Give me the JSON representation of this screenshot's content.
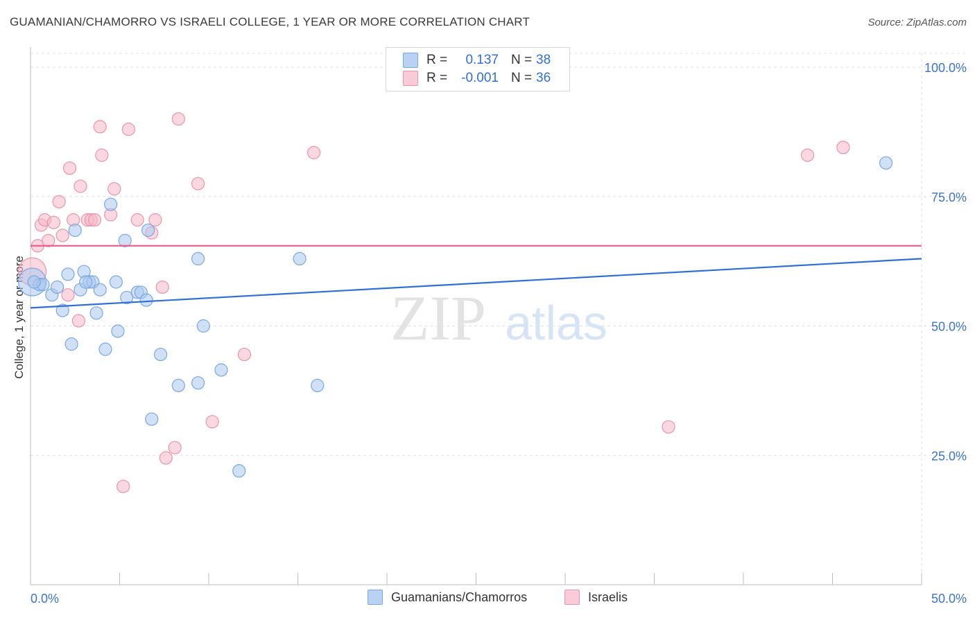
{
  "title": "GUAMANIAN/CHAMORRO VS ISRAELI COLLEGE, 1 YEAR OR MORE CORRELATION CHART",
  "source": "Source: ZipAtlas.com",
  "watermark": {
    "zip": "ZIP",
    "atlas": "atlas"
  },
  "legend_top": [
    {
      "r_label": "R =",
      "r_value": "0.137",
      "n_label": "N =",
      "n_value": "38"
    },
    {
      "r_label": "R =",
      "r_value": "-0.001",
      "n_label": "N =",
      "n_value": "36"
    }
  ],
  "colors": {
    "blue_fill": "#a9c8ef",
    "blue_stroke": "#7aa7e0",
    "blue_line": "#2f6fd6",
    "pink_fill": "#f5b8c9",
    "pink_stroke": "#eb93ad",
    "pink_line": "#e8618c",
    "tick_label": "#3b74c8",
    "grid": "#dddddd"
  },
  "chart_data": {
    "type": "scatter",
    "title": "GUAMANIAN/CHAMORRO VS ISRAELI COLLEGE, 1 YEAR OR MORE CORRELATION CHART",
    "ylabel": "College, 1 year or more",
    "xlabel": "",
    "xlim": [
      0,
      50
    ],
    "ylim": [
      0,
      105
    ],
    "x_tick_labels": [
      "0.0%",
      "50.0%"
    ],
    "y_ticks": [
      25,
      50,
      75,
      100
    ],
    "y_tick_labels": [
      "25.0%",
      "50.0%",
      "75.0%",
      "100.0%"
    ],
    "grid": true,
    "legend_position": "bottom",
    "series": [
      {
        "name": "Guamanians/Chamorros",
        "color": "blue",
        "points": [
          [
            0.1,
            58.5
          ],
          [
            0.5,
            58
          ],
          [
            0.7,
            58
          ],
          [
            1.2,
            56
          ],
          [
            1.5,
            57.5
          ],
          [
            1.8,
            53
          ],
          [
            2.1,
            60
          ],
          [
            2.3,
            46.5
          ],
          [
            2.5,
            68.5
          ],
          [
            2.8,
            57
          ],
          [
            3.0,
            60.5
          ],
          [
            3.3,
            58.5
          ],
          [
            3.5,
            58.5
          ],
          [
            3.7,
            52.5
          ],
          [
            3.9,
            57
          ],
          [
            4.2,
            45.5
          ],
          [
            4.5,
            73.5
          ],
          [
            4.8,
            58.5
          ],
          [
            4.9,
            49
          ],
          [
            5.3,
            66.5
          ],
          [
            5.4,
            55.5
          ],
          [
            6.0,
            56.5
          ],
          [
            6.2,
            56.5
          ],
          [
            6.5,
            55
          ],
          [
            6.6,
            68.5
          ],
          [
            6.8,
            32
          ],
          [
            7.3,
            44.5
          ],
          [
            8.3,
            38.5
          ],
          [
            9.4,
            39
          ],
          [
            9.4,
            63
          ],
          [
            9.7,
            50
          ],
          [
            10.7,
            41.5
          ],
          [
            11.7,
            22
          ],
          [
            15.1,
            63
          ],
          [
            16.1,
            38.5
          ],
          [
            48.0,
            81.5
          ],
          [
            0.2,
            58.5
          ],
          [
            3.1,
            58.5
          ]
        ],
        "trend": [
          [
            0,
            53.5
          ],
          [
            50,
            63
          ]
        ]
      },
      {
        "name": "Israelis",
        "color": "pink",
        "points": [
          [
            0.1,
            60.5
          ],
          [
            0.4,
            65.5
          ],
          [
            0.6,
            69.5
          ],
          [
            0.8,
            70.5
          ],
          [
            1.0,
            66.5
          ],
          [
            1.3,
            70
          ],
          [
            1.6,
            74
          ],
          [
            1.8,
            67.5
          ],
          [
            2.1,
            56
          ],
          [
            2.2,
            80.5
          ],
          [
            2.4,
            70.5
          ],
          [
            2.7,
            51
          ],
          [
            2.8,
            77
          ],
          [
            3.2,
            70.5
          ],
          [
            3.4,
            70.5
          ],
          [
            3.6,
            70.5
          ],
          [
            3.9,
            88.5
          ],
          [
            4.0,
            83
          ],
          [
            4.5,
            71.5
          ],
          [
            4.7,
            76.5
          ],
          [
            5.2,
            19
          ],
          [
            5.5,
            88
          ],
          [
            6.0,
            70.5
          ],
          [
            6.8,
            68
          ],
          [
            7.0,
            70.5
          ],
          [
            7.4,
            57.5
          ],
          [
            7.6,
            24.5
          ],
          [
            8.1,
            26.5
          ],
          [
            8.3,
            90
          ],
          [
            9.4,
            77.5
          ],
          [
            10.2,
            31.5
          ],
          [
            12.0,
            44.5
          ],
          [
            15.9,
            83.5
          ],
          [
            35.8,
            30.5
          ],
          [
            43.6,
            83
          ],
          [
            45.6,
            84.5
          ]
        ],
        "trend": [
          [
            0,
            65.5
          ],
          [
            50,
            65.5
          ]
        ]
      }
    ]
  }
}
